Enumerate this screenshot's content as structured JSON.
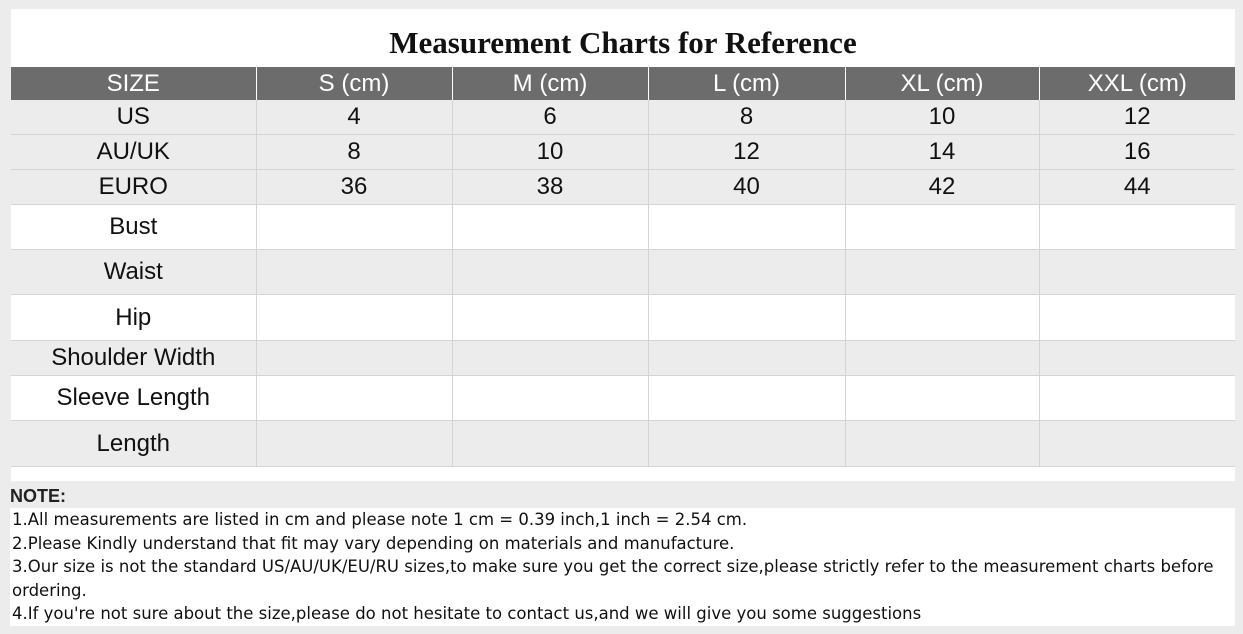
{
  "title": "Measurement Charts for Reference",
  "table": {
    "headers": [
      "SIZE",
      "S (cm)",
      "M (cm)",
      "L (cm)",
      "XL (cm)",
      "XXL (cm)"
    ],
    "rows": [
      {
        "label": "US",
        "cells": [
          "4",
          "6",
          "8",
          "10",
          "12"
        ]
      },
      {
        "label": "AU/UK",
        "cells": [
          "8",
          "10",
          "12",
          "14",
          "16"
        ]
      },
      {
        "label": "EURO",
        "cells": [
          "36",
          "38",
          "40",
          "42",
          "44"
        ]
      },
      {
        "label": "Bust",
        "cells": [
          "",
          "",
          "",
          "",
          ""
        ]
      },
      {
        "label": "Waist",
        "cells": [
          "",
          "",
          "",
          "",
          ""
        ]
      },
      {
        "label": "Hip",
        "cells": [
          "",
          "",
          "",
          "",
          ""
        ]
      },
      {
        "label": "Shoulder Width",
        "cells": [
          "",
          "",
          "",
          "",
          ""
        ]
      },
      {
        "label": "Sleeve Length",
        "cells": [
          "",
          "",
          "",
          "",
          ""
        ]
      },
      {
        "label": "Length",
        "cells": [
          "",
          "",
          "",
          "",
          ""
        ]
      }
    ]
  },
  "notes": {
    "title": "NOTE:",
    "items": [
      "1.All measurements are listed in cm and please note 1 cm = 0.39 inch,1 inch = 2.54 cm.",
      "2.Please Kindly understand that fit may vary depending on materials and manufacture.",
      "3.Our size is not the standard US/AU/UK/EU/RU sizes,to make sure you get the correct size,please strictly refer to the measurement charts before ordering.",
      "4.If you're not sure about the size,please do not hesitate to contact us,and we will give you some suggestions"
    ]
  },
  "colors": {
    "header_bg": "#6c6c6c",
    "header_text": "#ffffff",
    "row_alt_bg": "#ececec",
    "page_bg": "#ececec"
  }
}
